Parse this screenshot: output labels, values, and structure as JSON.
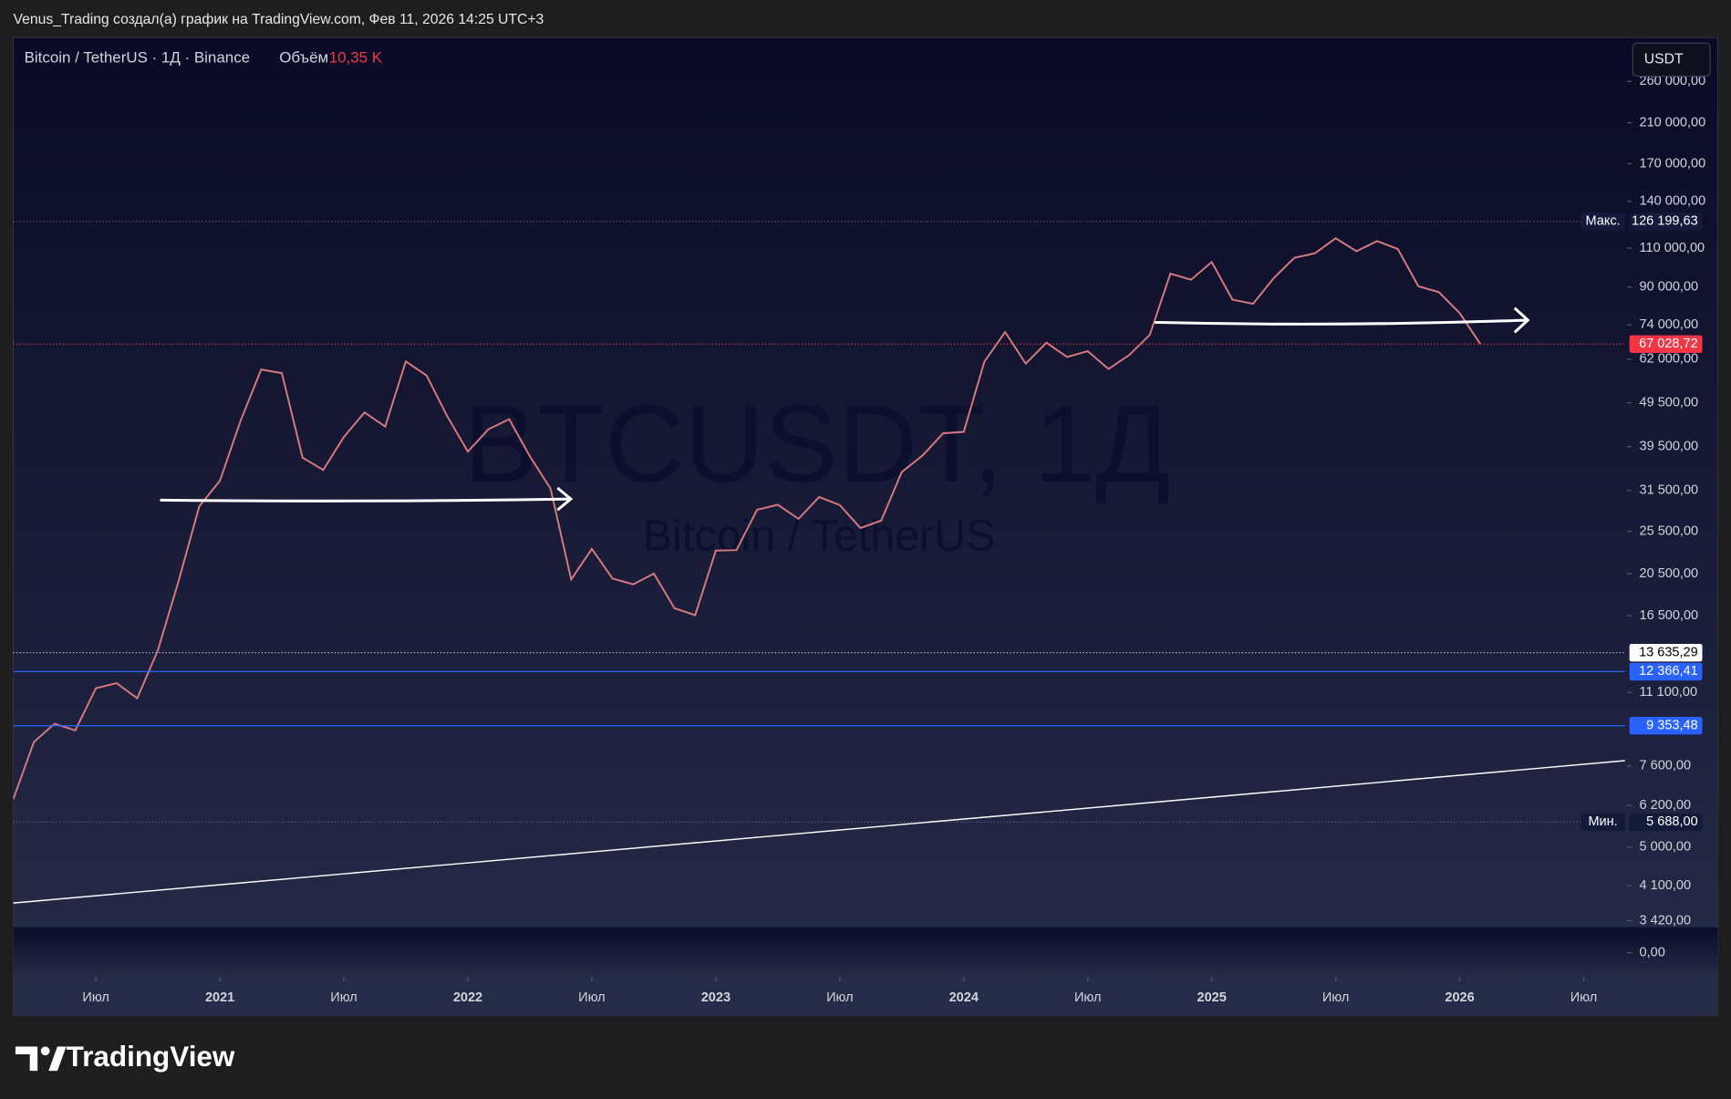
{
  "header": "Venus_Trading создал(а) график на TradingView.com, Фев 11, 2026 14:25 UTC+3",
  "footer": {
    "logo": "TradingView"
  },
  "chart_data": {
    "type": "line",
    "title": "Bitcoin / TetherUS · 1Д · Binance",
    "volume_label": "Объём",
    "volume": {
      "value": 10350,
      "label": "10,35 K"
    },
    "currency": "USDT",
    "watermark": "BTCUSDT, 1Д",
    "watermark_subtitle": "Bitcoin / TetherUS",
    "log_scale": true,
    "grid": false,
    "x": [
      "2020-03",
      "2020-04",
      "2020-05",
      "2020-06",
      "2020-07",
      "2020-08",
      "2020-09",
      "2020-10",
      "2020-11",
      "2020-12",
      "2021-01",
      "2021-02",
      "2021-03",
      "2021-04",
      "2021-05",
      "2021-06",
      "2021-07",
      "2021-08",
      "2021-09",
      "2021-10",
      "2021-11",
      "2021-12",
      "2022-01",
      "2022-02",
      "2022-03",
      "2022-04",
      "2022-05",
      "2022-06",
      "2022-07",
      "2022-08",
      "2022-09",
      "2022-10",
      "2022-11",
      "2022-12",
      "2023-01",
      "2023-02",
      "2023-03",
      "2023-04",
      "2023-05",
      "2023-06",
      "2023-07",
      "2023-08",
      "2023-09",
      "2023-10",
      "2023-11",
      "2023-12",
      "2024-01",
      "2024-02",
      "2024-03",
      "2024-04",
      "2024-05",
      "2024-06",
      "2024-07",
      "2024-08",
      "2024-09",
      "2024-10",
      "2024-11",
      "2024-12",
      "2025-01",
      "2025-02",
      "2025-03",
      "2025-04",
      "2025-05",
      "2025-06",
      "2025-07",
      "2025-08",
      "2025-09",
      "2025-10",
      "2025-11",
      "2025-12",
      "2026-01",
      "2026-02"
    ],
    "series": [
      {
        "name": "BTCUSDT",
        "color": "#d77b7f",
        "values": [
          6400,
          8600,
          9450,
          9130,
          11350,
          11650,
          10780,
          13800,
          19700,
          29000,
          33100,
          45100,
          58800,
          57700,
          37300,
          35000,
          41500,
          47100,
          43800,
          61300,
          57000,
          46200,
          38500,
          43200,
          45500,
          37600,
          31800,
          19900,
          23300,
          20000,
          19400,
          20500,
          17150,
          16550,
          23100,
          23150,
          28500,
          29250,
          27200,
          30450,
          29200,
          25950,
          26950,
          34650,
          37700,
          42300,
          42600,
          61200,
          71300,
          60600,
          67500,
          62700,
          64600,
          58970,
          63300,
          70300,
          96400,
          93400,
          102400,
          84300,
          82500,
          94200,
          104600,
          107100,
          115700,
          108200,
          114000,
          109500,
          90400,
          87600,
          78600,
          67028.72
        ]
      }
    ],
    "xlim": [
      "2020-03",
      "2026-09"
    ],
    "xticks": [
      {
        "value": "2020-07",
        "label": "Июл"
      },
      {
        "value": "2021-01",
        "label": "2021"
      },
      {
        "value": "2021-07",
        "label": "Июл"
      },
      {
        "value": "2022-01",
        "label": "2022"
      },
      {
        "value": "2022-07",
        "label": "Июл"
      },
      {
        "value": "2023-01",
        "label": "2023"
      },
      {
        "value": "2023-07",
        "label": "Июл"
      },
      {
        "value": "2024-01",
        "label": "2024"
      },
      {
        "value": "2024-07",
        "label": "Июл"
      },
      {
        "value": "2025-01",
        "label": "2025"
      },
      {
        "value": "2025-07",
        "label": "Июл"
      },
      {
        "value": "2026-01",
        "label": "2026"
      },
      {
        "value": "2026-07",
        "label": "Июл"
      }
    ],
    "ylim": [
      3305,
      326000
    ],
    "yticks": [
      {
        "value": 260000,
        "label": "260 000,00"
      },
      {
        "value": 210000,
        "label": "210 000,00"
      },
      {
        "value": 170000,
        "label": "170 000,00"
      },
      {
        "value": 140000,
        "label": "140 000,00"
      },
      {
        "value": 110000,
        "label": "110 000,00"
      },
      {
        "value": 90000,
        "label": "90 000,00"
      },
      {
        "value": 74000,
        "label": "74 000,00"
      },
      {
        "value": 62000,
        "label": "62 000,00"
      },
      {
        "value": 49500,
        "label": "49 500,00"
      },
      {
        "value": 39500,
        "label": "39 500,00"
      },
      {
        "value": 31500,
        "label": "31 500,00"
      },
      {
        "value": 25500,
        "label": "25 500,00"
      },
      {
        "value": 20500,
        "label": "20 500,00"
      },
      {
        "value": 16500,
        "label": "16 500,00"
      },
      {
        "value": 11100,
        "label": "11 100,00"
      },
      {
        "value": 7600,
        "label": "7 600,00"
      },
      {
        "value": 6200,
        "label": "6 200,00"
      },
      {
        "value": 5000,
        "label": "5 000,00"
      },
      {
        "value": 4100,
        "label": "4 100,00"
      },
      {
        "value": 3420,
        "label": "3 420,00"
      }
    ],
    "volume_ticks": [
      {
        "value": 0,
        "label": "0,00"
      }
    ],
    "price_lines": [
      {
        "value": 126199.63,
        "label": "126 199,63",
        "tag": "Макс.",
        "color": "#5d6383",
        "style": "dotted",
        "label_bg": "#131a3a",
        "label_color": "#ffffff"
      },
      {
        "value": 67028.72,
        "label": "67 028,72",
        "color": "#f23645",
        "style": "dotted",
        "label_bg": "#f23645",
        "label_color": "#ffffff"
      },
      {
        "value": 13635.29,
        "label": "13 635,29",
        "color": "#c8cad3",
        "style": "dotted",
        "label_bg": "#ffffff",
        "label_color": "#000000"
      },
      {
        "value": 12366.41,
        "label": "12 366,41",
        "color": "#2962ff",
        "style": "solid",
        "label_bg": "#2962ff",
        "label_color": "#ffffff"
      },
      {
        "value": 9353.48,
        "label": "9 353,48",
        "color": "#2962ff",
        "style": "solid",
        "label_bg": "#2962ff",
        "label_color": "#ffffff"
      },
      {
        "value": 5688,
        "label": "5 688,00",
        "tag": "Мин.",
        "color": "#5d6383",
        "style": "dotted",
        "label_bg": "#131a3a",
        "label_color": "#ffffff"
      }
    ]
  }
}
